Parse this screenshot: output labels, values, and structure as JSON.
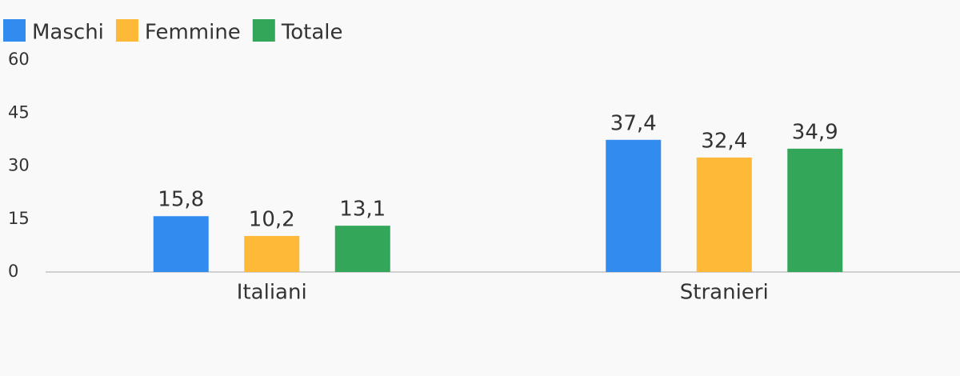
{
  "chart_data": {
    "type": "bar",
    "categories": [
      "Italiani",
      "Stranieri"
    ],
    "series": [
      {
        "name": "Maschi",
        "color": "#328bee",
        "values": [
          15.8,
          37.4
        ],
        "value_labels": [
          "15,8",
          "37,4"
        ]
      },
      {
        "name": "Femmine",
        "color": "#ffb938",
        "values": [
          10.2,
          32.4
        ],
        "value_labels": [
          "10,2",
          "32,4"
        ]
      },
      {
        "name": "Totale",
        "color": "#33a65a",
        "values": [
          13.1,
          34.9
        ],
        "value_labels": [
          "13,1",
          "34,9"
        ]
      }
    ],
    "ylim": [
      0,
      60
    ],
    "yticks": [
      0,
      15,
      30,
      45,
      60
    ],
    "grid": false,
    "legend": "top-left"
  }
}
